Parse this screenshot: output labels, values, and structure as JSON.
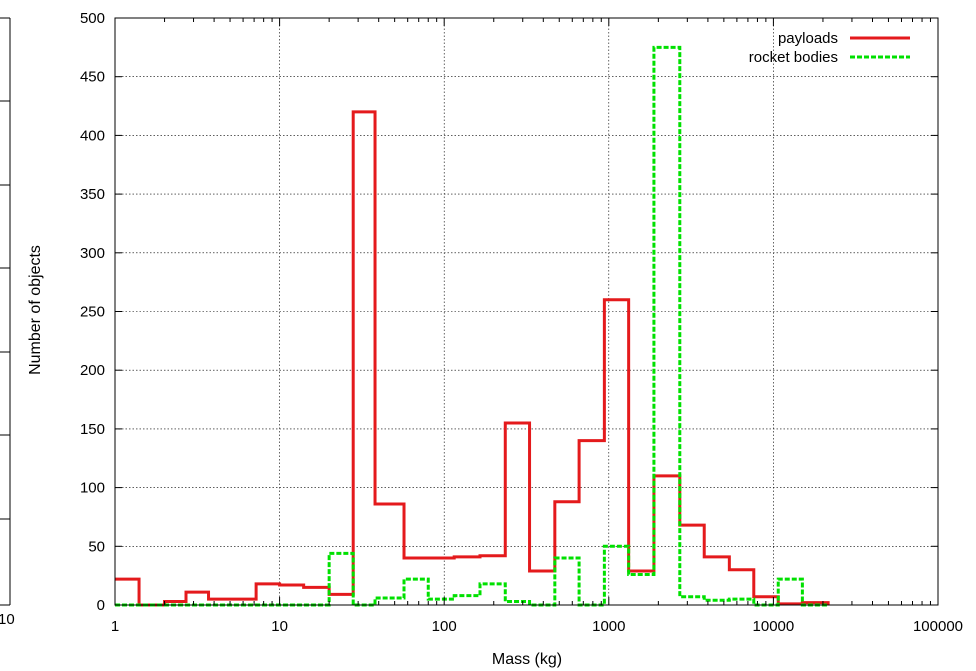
{
  "chart_data": {
    "type": "histogram",
    "xlabel": "Mass (kg)",
    "ylabel": "Number of objects",
    "x_scale": "log",
    "xlim": [
      1,
      100000
    ],
    "ylim": [
      0,
      500
    ],
    "x_ticks": [
      1,
      10,
      100,
      1000,
      10000,
      100000
    ],
    "x_tick_labels": [
      "1",
      "10",
      "100",
      "1000",
      "10000",
      "100000"
    ],
    "y_ticks": [
      0,
      50,
      100,
      150,
      200,
      250,
      300,
      350,
      400,
      450,
      500
    ],
    "y_tick_labels": [
      "0",
      "50",
      "100",
      "150",
      "200",
      "250",
      "300",
      "350",
      "400",
      "450",
      "500"
    ],
    "grid": true,
    "legend_position": "top-right",
    "bin_edges": [
      1,
      1.4,
      2,
      2.7,
      3.7,
      5.2,
      7.2,
      10,
      14,
      20,
      28,
      38,
      57,
      80,
      115,
      165,
      235,
      330,
      470,
      660,
      940,
      1320,
      1880,
      2700,
      3800,
      5400,
      7600,
      10700,
      15000,
      21500
    ],
    "series": [
      {
        "name": "payloads",
        "color": "#e41a1c",
        "style": "solid",
        "values": [
          22,
          0,
          3,
          11,
          5,
          5,
          18,
          17,
          15,
          9,
          420,
          86,
          40,
          40,
          41,
          42,
          155,
          29,
          88,
          140,
          260,
          29,
          110,
          68,
          41,
          30,
          7,
          1,
          2
        ]
      },
      {
        "name": "rocket bodies",
        "color": "#00e000",
        "style": "dashed",
        "values": [
          0,
          0,
          0,
          0,
          0,
          0,
          0,
          0,
          0,
          44,
          0,
          6,
          22,
          5,
          8,
          18,
          3,
          0,
          40,
          0,
          50,
          26,
          475,
          7,
          4,
          5,
          0,
          22,
          0
        ]
      }
    ]
  },
  "edge_fragment": "10"
}
